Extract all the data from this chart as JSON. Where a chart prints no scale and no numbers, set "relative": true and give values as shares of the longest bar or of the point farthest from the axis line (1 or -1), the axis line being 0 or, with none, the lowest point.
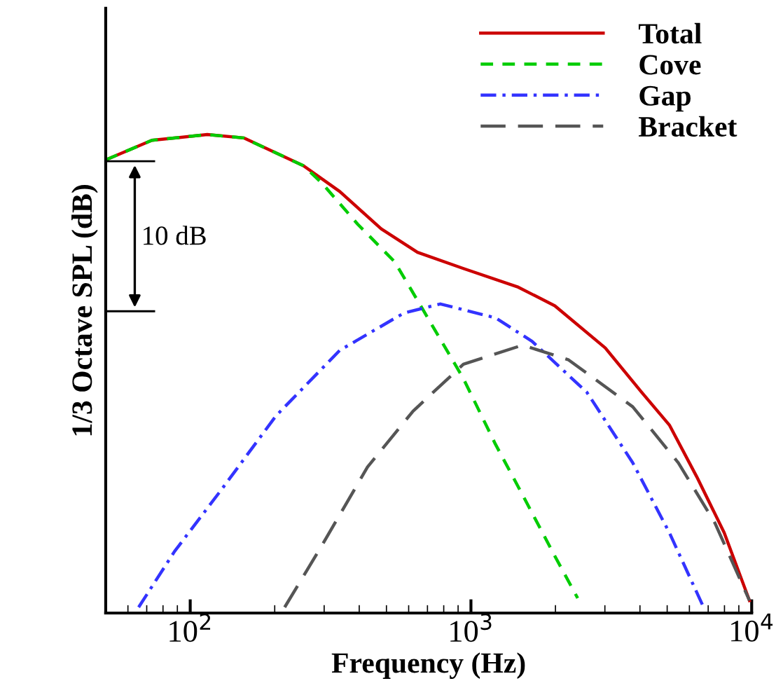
{
  "chart_data": {
    "type": "line",
    "relative": true,
    "xlabel": "Frequency (Hz)",
    "ylabel": "1/3 Octave SPL (dB)",
    "log": "x",
    "xlim": [
      50,
      10000
    ],
    "xticks": [
      {
        "value": 100,
        "label": "10$^{2}$"
      },
      {
        "value": 1000,
        "label": "10$^{3}$"
      },
      {
        "value": 10000,
        "label": "10$^{4}$"
      }
    ],
    "legend": "top right",
    "grid": false,
    "annotations": [
      "10 dB"
    ],
    "series": [
      {
        "name": "Total",
        "color": "#cc0000",
        "line_style": "solid",
        "x": [
          50,
          73,
          115,
          155,
          253,
          341,
          479,
          645,
          940,
          1475,
          1990,
          3010,
          4060,
          5090,
          6370,
          7980,
          9820
        ],
        "values": [
          0.947,
          0.988,
          1.0,
          0.993,
          0.935,
          0.881,
          0.803,
          0.754,
          0.72,
          0.681,
          0.642,
          0.554,
          0.461,
          0.393,
          0.285,
          0.168,
          0.026
        ]
      },
      {
        "name": "Cove",
        "color": "#00cc00",
        "line_style": "dashed",
        "x": [
          50,
          73,
          115,
          155,
          253,
          293,
          396,
          535,
          670,
          940,
          1222,
          1530,
          1990,
          2400
        ],
        "values": [
          0.947,
          0.988,
          1.0,
          0.993,
          0.935,
          0.9,
          0.812,
          0.734,
          0.637,
          0.49,
          0.353,
          0.246,
          0.119,
          0.031
        ]
      },
      {
        "name": "Gap",
        "color": "#3333ff",
        "line_style": "dashdot",
        "x": [
          65.5,
          88,
          128.5,
          202,
          341,
          577,
          778,
          1222,
          1650,
          2590,
          3770,
          5090,
          6740
        ],
        "values": [
          0.012,
          0.129,
          0.256,
          0.412,
          0.549,
          0.627,
          0.646,
          0.617,
          0.568,
          0.461,
          0.314,
          0.168,
          0.012
        ]
      },
      {
        "name": "Bracket",
        "color": "#555555",
        "line_style": "longdash",
        "x": [
          217,
          293,
          428,
          622,
          940,
          1530,
          2228,
          3770,
          5480,
          7400,
          9820
        ],
        "values": [
          0.012,
          0.139,
          0.305,
          0.422,
          0.52,
          0.56,
          0.529,
          0.431,
          0.314,
          0.188,
          0.026
        ]
      }
    ]
  }
}
